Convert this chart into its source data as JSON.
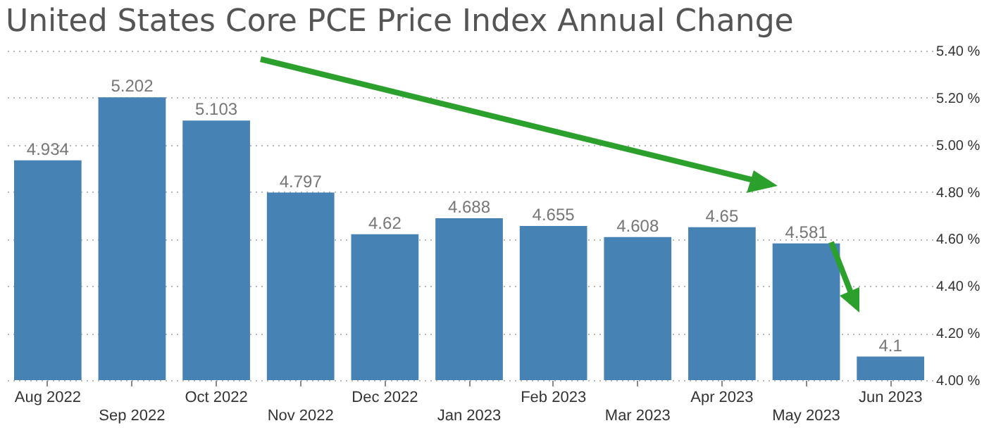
{
  "chart_data": {
    "type": "bar",
    "title": "United States Core PCE Price Index Annual Change",
    "categories": [
      "Aug 2022",
      "Sep 2022",
      "Oct 2022",
      "Nov 2022",
      "Dec 2022",
      "Jan 2023",
      "Feb 2023",
      "Mar 2023",
      "Apr 2023",
      "May 2023",
      "Jun 2023"
    ],
    "values": [
      4.934,
      5.202,
      5.103,
      4.797,
      4.62,
      4.688,
      4.655,
      4.608,
      4.65,
      4.581,
      4.1
    ],
    "color": "#4682b4",
    "data_labels": true,
    "grid": "y",
    "ylim": [
      4.0,
      5.4
    ],
    "yticks": [
      {
        "value": 4.0,
        "label": "4.00 %"
      },
      {
        "value": 4.2,
        "label": "4.20 %"
      },
      {
        "value": 4.4,
        "label": "4.40 %"
      },
      {
        "value": 4.6,
        "label": "4.60 %"
      },
      {
        "value": 4.8,
        "label": "4.80 %"
      },
      {
        "value": 5.0,
        "label": "5.00 %"
      },
      {
        "value": 5.2,
        "label": "5.20 %"
      },
      {
        "value": 5.4,
        "label": "5.40 %"
      }
    ]
  }
}
